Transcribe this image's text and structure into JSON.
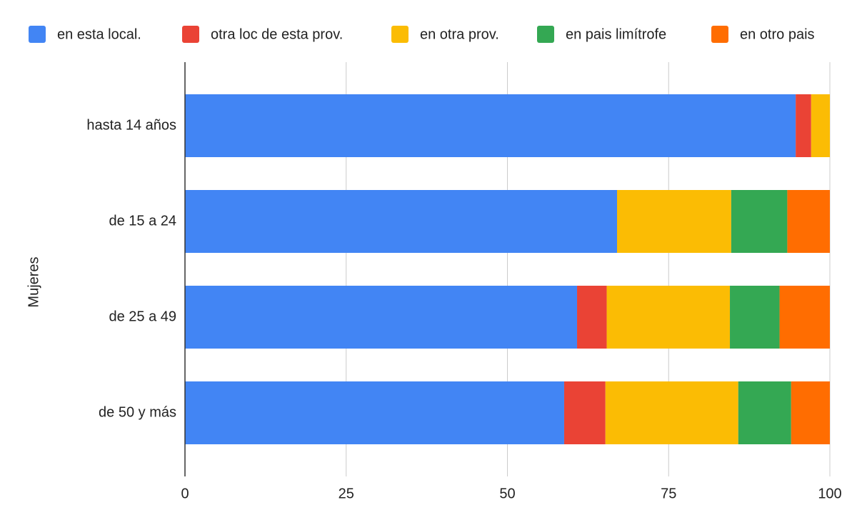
{
  "chart_data": {
    "type": "bar",
    "orientation": "horizontal",
    "stacked": true,
    "ylabel": "Mujeres",
    "categories": [
      "hasta 14 años",
      "de 15 a 24",
      "de 25 a 49",
      "de 50 y más"
    ],
    "series": [
      {
        "name": "en esta local.",
        "color": "#4285f4",
        "values": [
          94.7,
          67.0,
          60.8,
          58.8
        ]
      },
      {
        "name": "otra loc de esta prov.",
        "color": "#ea4335",
        "values": [
          2.4,
          0,
          4.6,
          6.4
        ]
      },
      {
        "name": "en otra prov.",
        "color": "#fbbc04",
        "values": [
          2.9,
          17.7,
          19.1,
          20.6
        ]
      },
      {
        "name": "en pais limítrofe",
        "color": "#34a853",
        "values": [
          0,
          8.7,
          7.7,
          8.2
        ]
      },
      {
        "name": "en otro pais",
        "color": "#ff6d01",
        "values": [
          0,
          6.6,
          7.8,
          6.0
        ]
      }
    ],
    "xlim": [
      0,
      100
    ],
    "xticks": [
      0,
      25,
      50,
      75,
      100
    ],
    "grid": true,
    "legend": "top"
  }
}
